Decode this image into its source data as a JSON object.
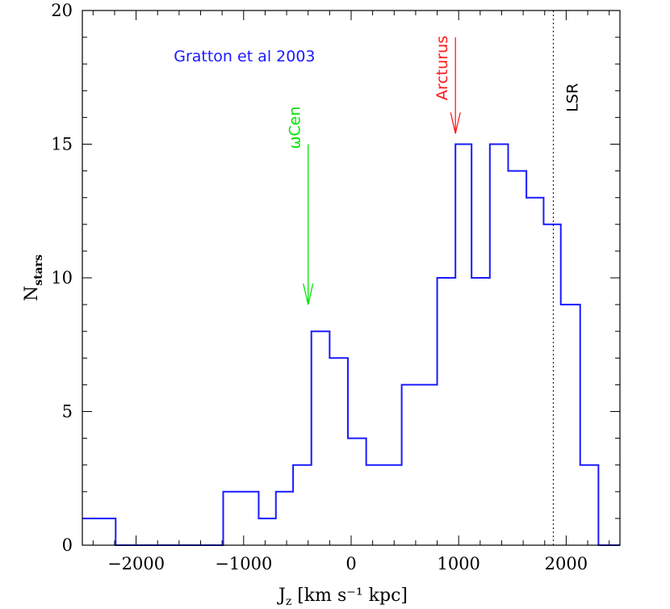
{
  "chart_data": {
    "type": "histogram-step",
    "title": "",
    "xlabel": "J",
    "xlabel_subscript": "z",
    "xlabel_units": "[km s⁻¹ kpc]",
    "ylabel": "N",
    "ylabel_subscript": "stars",
    "xlim": [
      -2500,
      2500
    ],
    "ylim": [
      0,
      20
    ],
    "x_major_ticks": [
      -2000,
      -1000,
      0,
      1000,
      2000
    ],
    "x_tick_labels": [
      "−2000",
      "−1000",
      "0",
      "1000",
      "2000"
    ],
    "y_major_ticks": [
      0,
      5,
      10,
      15,
      20
    ],
    "y_tick_labels": [
      "0",
      "5",
      "10",
      "15",
      "20"
    ],
    "x_minor_step": 200,
    "y_minor_step": 1,
    "series": [
      {
        "name": "Gratton et al 2003",
        "color": "#1a1aff",
        "bin_edges": [
          -2500,
          -2190,
          -1190,
          -860,
          -700,
          -540,
          -370,
          -200,
          -30,
          140,
          470,
          800,
          970,
          1120,
          1290,
          1460,
          1630,
          1790,
          1950,
          2130,
          2300,
          2500
        ],
        "counts": [
          1,
          0,
          2,
          1,
          2,
          3,
          8,
          7,
          4,
          3,
          6,
          10,
          15,
          10,
          15,
          14,
          13,
          12,
          9,
          3,
          0
        ]
      }
    ],
    "annotations": [
      {
        "label": "Gratton et al 2003",
        "color": "#1a1aff",
        "x": -1650,
        "y": 18.1,
        "kind": "text"
      },
      {
        "label": "ωCen",
        "color": "#00e600",
        "x": -400,
        "y_start": 15,
        "y_end": 9.0,
        "kind": "arrow"
      },
      {
        "label": "Arcturus",
        "color": "#ff1a1a",
        "x": 970,
        "y_start": 19.0,
        "y_end": 15.4,
        "kind": "arrow"
      },
      {
        "label": "LSR",
        "color": "#000000",
        "x": 1880,
        "kind": "vline-dotted"
      }
    ]
  }
}
